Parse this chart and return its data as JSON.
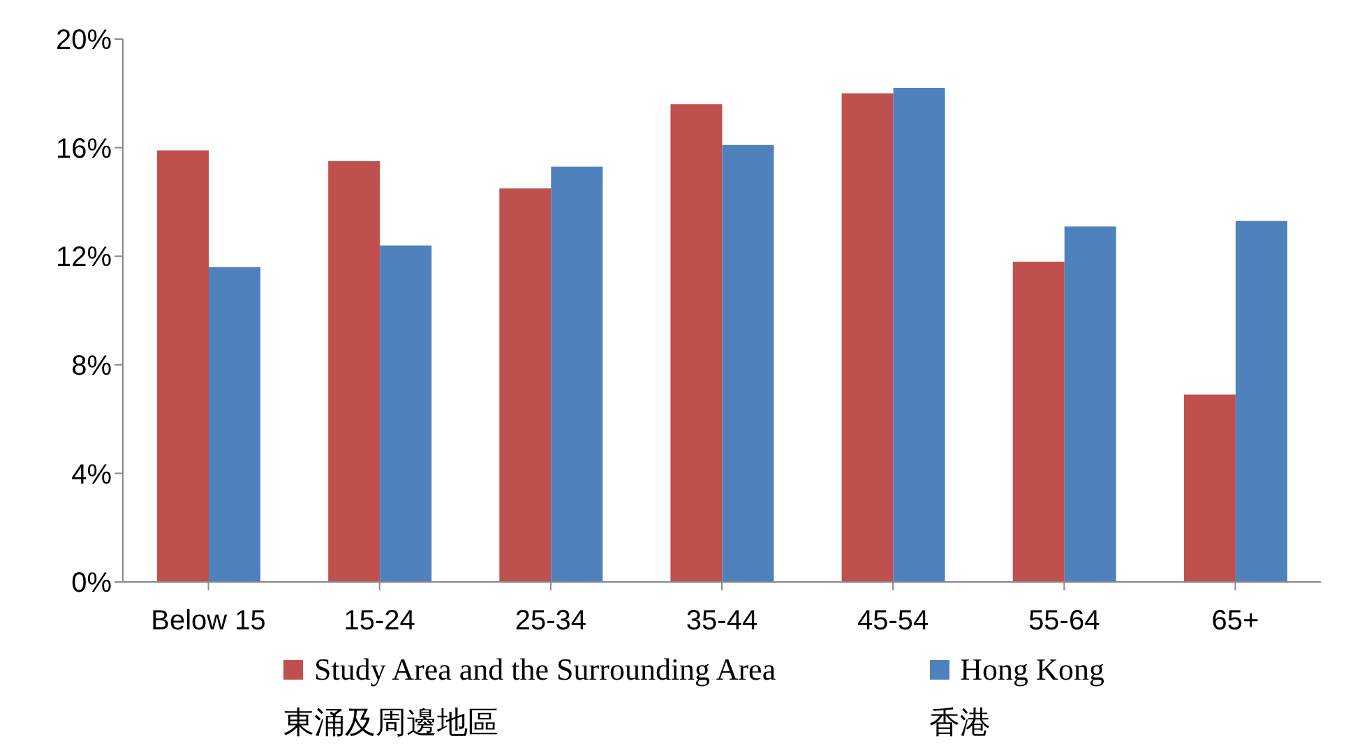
{
  "chart_data": {
    "type": "bar",
    "categories": [
      "Below 15",
      "15-24",
      "25-34",
      "35-44",
      "45-54",
      "55-64",
      "65+"
    ],
    "series": [
      {
        "name": "Study Area and the Surrounding Area\n東涌及周邊地區",
        "color": "#c0504d",
        "values": [
          15.9,
          15.5,
          14.5,
          17.6,
          18.0,
          11.8,
          6.9
        ]
      },
      {
        "name": "Hong Kong\n香港",
        "color": "#4f81bd",
        "values": [
          11.6,
          12.4,
          15.3,
          16.1,
          18.2,
          13.1,
          13.3
        ]
      }
    ],
    "ylim": [
      0,
      20
    ],
    "yticks": [
      {
        "value": 0,
        "label": "0%"
      },
      {
        "value": 4,
        "label": "4%"
      },
      {
        "value": 8,
        "label": "8%"
      },
      {
        "value": 12,
        "label": "12%"
      },
      {
        "value": 16,
        "label": "16%"
      },
      {
        "value": 20,
        "label": "20%"
      }
    ],
    "grid": false,
    "legend": "bottom"
  }
}
